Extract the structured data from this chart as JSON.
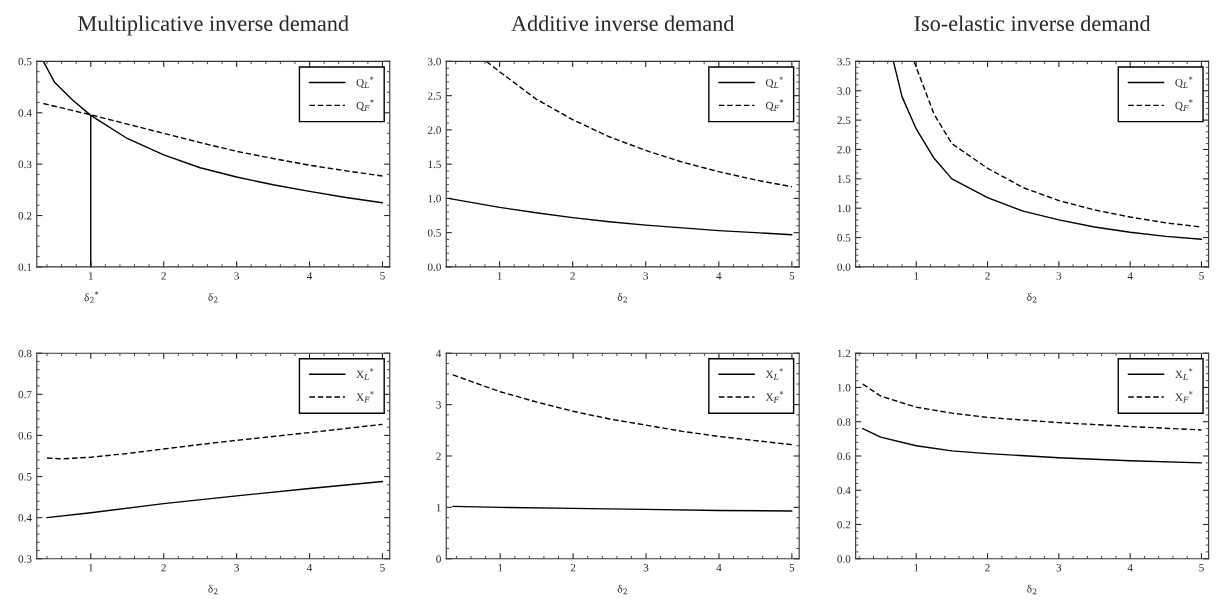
{
  "chart_data": [
    {
      "type": "line",
      "title": "Multiplicative inverse demand",
      "xlabel": "δ$_{2}$",
      "xlim": [
        0.26,
        5.1
      ],
      "xticks": [
        1,
        2,
        3,
        4,
        5
      ],
      "ylim": [
        0.1,
        0.5
      ],
      "yticks": [
        0.1,
        0.2,
        0.3,
        0.4,
        0.5
      ],
      "legend": "top right",
      "grid": false,
      "annotations": [
        "δ$_{2}$$^{*}$"
      ],
      "ref_lines": [
        {
          "axis": "x",
          "value": 1,
          "color": "#000000",
          "line_style": "solid"
        }
      ],
      "series": [
        {
          "name": "Q$_{L}$$^{*}$",
          "color": "#000000",
          "line_style": "solid",
          "x": [
            0.35,
            0.5,
            0.75,
            1,
            1.5,
            2,
            2.5,
            3,
            3.5,
            4,
            4.5,
            5
          ],
          "values": [
            0.5,
            0.46,
            0.425,
            0.395,
            0.35,
            0.318,
            0.293,
            0.275,
            0.26,
            0.247,
            0.235,
            0.225
          ]
        },
        {
          "name": "Q$_{F}$$^{*}$",
          "color": "#000000",
          "line_style": "dashed",
          "x": [
            0.35,
            1,
            1.5,
            2,
            2.5,
            3,
            3.5,
            4,
            4.5,
            5
          ],
          "values": [
            0.418,
            0.396,
            0.378,
            0.36,
            0.342,
            0.325,
            0.311,
            0.298,
            0.287,
            0.277
          ]
        }
      ]
    },
    {
      "type": "line",
      "title": "Additive inverse demand",
      "xlabel": "δ$_{2}$",
      "xlim": [
        0.27,
        5.1
      ],
      "xticks": [
        1,
        2,
        3,
        4,
        5
      ],
      "ylim": [
        0.0,
        3.0
      ],
      "yticks": [
        {
          "value": 0,
          "label": "0.0"
        },
        0.5,
        {
          "value": 1,
          "label": "1.0"
        },
        1.5,
        {
          "value": 2,
          "label": "2.0"
        },
        2.5,
        {
          "value": 3,
          "label": "3.0"
        }
      ],
      "legend": "top right",
      "grid": false,
      "series": [
        {
          "name": "Q$_{L}$$^{*}$",
          "color": "#000000",
          "line_style": "solid",
          "x": [
            0.3,
            1,
            1.5,
            2,
            2.5,
            3,
            3.5,
            4,
            4.5,
            5
          ],
          "values": [
            1.0,
            0.87,
            0.79,
            0.72,
            0.66,
            0.61,
            0.57,
            0.53,
            0.5,
            0.47
          ]
        },
        {
          "name": "Q$_{F}$$^{*}$",
          "color": "#000000",
          "line_style": "dashed",
          "x": [
            0.82,
            1,
            1.5,
            2,
            2.5,
            3,
            3.5,
            4,
            4.5,
            5
          ],
          "values": [
            3.0,
            2.85,
            2.45,
            2.15,
            1.9,
            1.7,
            1.53,
            1.39,
            1.27,
            1.17
          ]
        }
      ]
    },
    {
      "type": "line",
      "title": "Iso-elastic inverse demand",
      "xlabel": "δ$_{2}$",
      "xlim": [
        0.15,
        5.1
      ],
      "xticks": [
        1,
        2,
        3,
        4,
        5
      ],
      "ylim": [
        0.0,
        3.5
      ],
      "yticks": [
        {
          "value": 0,
          "label": "0.0"
        },
        0.5,
        {
          "value": 1,
          "label": "1.0"
        },
        1.5,
        {
          "value": 2,
          "label": "2.0"
        },
        2.5,
        {
          "value": 3,
          "label": "3.0"
        },
        3.5
      ],
      "legend": "top right",
      "grid": false,
      "series": [
        {
          "name": "Q$_{L}$$^{*}$",
          "color": "#000000",
          "line_style": "solid",
          "x": [
            0.68,
            0.8,
            1,
            1.25,
            1.5,
            2,
            2.5,
            3,
            3.5,
            4,
            4.5,
            5
          ],
          "values": [
            3.5,
            2.9,
            2.35,
            1.85,
            1.5,
            1.18,
            0.95,
            0.8,
            0.68,
            0.59,
            0.52,
            0.47
          ]
        },
        {
          "name": "Q$_{F}$$^{*}$",
          "color": "#000000",
          "line_style": "dashed",
          "x": [
            0.97,
            1,
            1.25,
            1.5,
            2,
            2.5,
            3,
            3.5,
            4,
            4.5,
            5
          ],
          "values": [
            3.5,
            3.4,
            2.6,
            2.1,
            1.68,
            1.35,
            1.13,
            0.97,
            0.85,
            0.75,
            0.68
          ]
        }
      ]
    },
    {
      "type": "line",
      "xlabel": "δ$_{2}$",
      "xlim": [
        0.26,
        5.1
      ],
      "xticks": [
        1,
        2,
        3,
        4,
        5
      ],
      "ylim": [
        0.3,
        0.8
      ],
      "yticks": [
        0.3,
        0.4,
        0.5,
        0.6,
        0.7,
        0.8
      ],
      "legend": "top right",
      "grid": false,
      "series": [
        {
          "name": "X$_{L}$$^{*}$",
          "color": "#000000",
          "line_style": "solid",
          "x": [
            0.4,
            1,
            2,
            3,
            4,
            5
          ],
          "values": [
            0.4,
            0.412,
            0.434,
            0.453,
            0.471,
            0.488
          ]
        },
        {
          "name": "X$_{F}$$^{*}$",
          "color": "#000000",
          "line_style": "dashed",
          "x": [
            0.4,
            0.6,
            1,
            1.5,
            2,
            2.5,
            3,
            4,
            5
          ],
          "values": [
            0.545,
            0.543,
            0.547,
            0.556,
            0.567,
            0.578,
            0.588,
            0.607,
            0.627
          ]
        }
      ]
    },
    {
      "type": "line",
      "xlabel": "δ$_{2}$",
      "xlim": [
        0.26,
        5.1
      ],
      "xticks": [
        1,
        2,
        3,
        4,
        5
      ],
      "ylim": [
        0,
        4
      ],
      "yticks": [
        0,
        1,
        2,
        3,
        4
      ],
      "legend": "top right",
      "grid": false,
      "series": [
        {
          "name": "X$_{L}$$^{*}$",
          "color": "#000000",
          "line_style": "solid",
          "x": [
            0.35,
            1,
            2,
            3,
            4,
            5
          ],
          "values": [
            1.02,
            1.0,
            0.98,
            0.96,
            0.94,
            0.93
          ]
        },
        {
          "name": "X$_{F}$$^{*}$",
          "color": "#000000",
          "line_style": "dashed",
          "x": [
            0.35,
            1,
            1.5,
            2,
            2.5,
            3,
            3.5,
            4,
            4.5,
            5
          ],
          "values": [
            3.58,
            3.25,
            3.05,
            2.87,
            2.72,
            2.6,
            2.48,
            2.38,
            2.3,
            2.22
          ]
        }
      ]
    },
    {
      "type": "line",
      "xlabel": "δ$_{2}$",
      "xlim": [
        0.15,
        5.1
      ],
      "xticks": [
        1,
        2,
        3,
        4,
        5
      ],
      "ylim": [
        0.0,
        1.2
      ],
      "yticks": [
        {
          "value": 0,
          "label": "0.0"
        },
        0.2,
        0.4,
        0.6,
        0.8,
        {
          "value": 1,
          "label": "1.0"
        },
        1.2
      ],
      "legend": "top right",
      "grid": false,
      "series": [
        {
          "name": "X$_{L}$$^{*}$",
          "color": "#000000",
          "line_style": "solid",
          "x": [
            0.25,
            0.5,
            1,
            1.5,
            2,
            3,
            4,
            5
          ],
          "values": [
            0.76,
            0.71,
            0.66,
            0.63,
            0.614,
            0.59,
            0.572,
            0.56
          ]
        },
        {
          "name": "X$_{F}$$^{*}$",
          "color": "#000000",
          "line_style": "dashed",
          "x": [
            0.25,
            0.5,
            1,
            1.5,
            2,
            3,
            4,
            5
          ],
          "values": [
            1.02,
            0.95,
            0.885,
            0.85,
            0.825,
            0.795,
            0.772,
            0.752
          ]
        }
      ]
    }
  ]
}
